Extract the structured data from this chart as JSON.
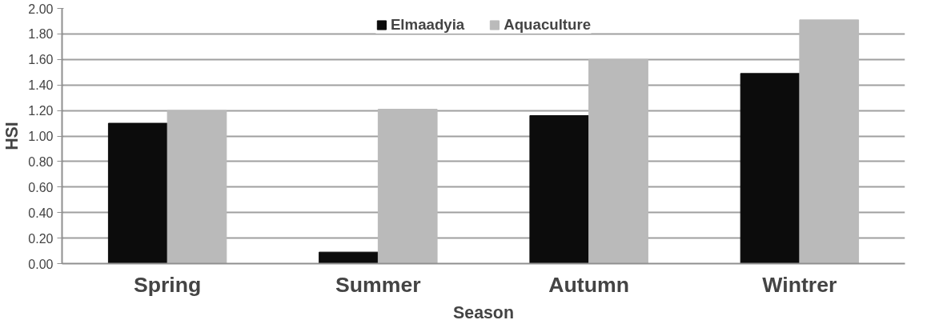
{
  "chart_data": {
    "type": "bar",
    "xlabel": "Season",
    "ylabel": "HSI",
    "categories": [
      "Spring",
      "Summer",
      "Autumn",
      "Wintrer"
    ],
    "series": [
      {
        "name": "Elmaadyia",
        "color": "#0c0c0c",
        "values": [
          1.1,
          0.09,
          1.16,
          1.49
        ]
      },
      {
        "name": "Aquaculture",
        "color": "#bababa",
        "values": [
          1.2,
          1.21,
          1.6,
          1.91
        ]
      }
    ],
    "ylim": [
      0,
      2
    ],
    "yticks": [
      {
        "value": 0,
        "label": "0.00"
      },
      {
        "value": 0.2,
        "label": "0.20"
      },
      {
        "value": 0.4,
        "label": "0.40"
      },
      {
        "value": 0.6,
        "label": "0.60"
      },
      {
        "value": 0.8,
        "label": "0.80"
      },
      {
        "value": 1.0,
        "label": "1.00"
      },
      {
        "value": 1.2,
        "label": "1.20"
      },
      {
        "value": 1.4,
        "label": "1.40"
      },
      {
        "value": 1.6,
        "label": "1.60"
      },
      {
        "value": 1.8,
        "label": "1.80"
      },
      {
        "value": 2.0,
        "label": "2.00"
      }
    ],
    "grid": "y",
    "legend": "top"
  }
}
